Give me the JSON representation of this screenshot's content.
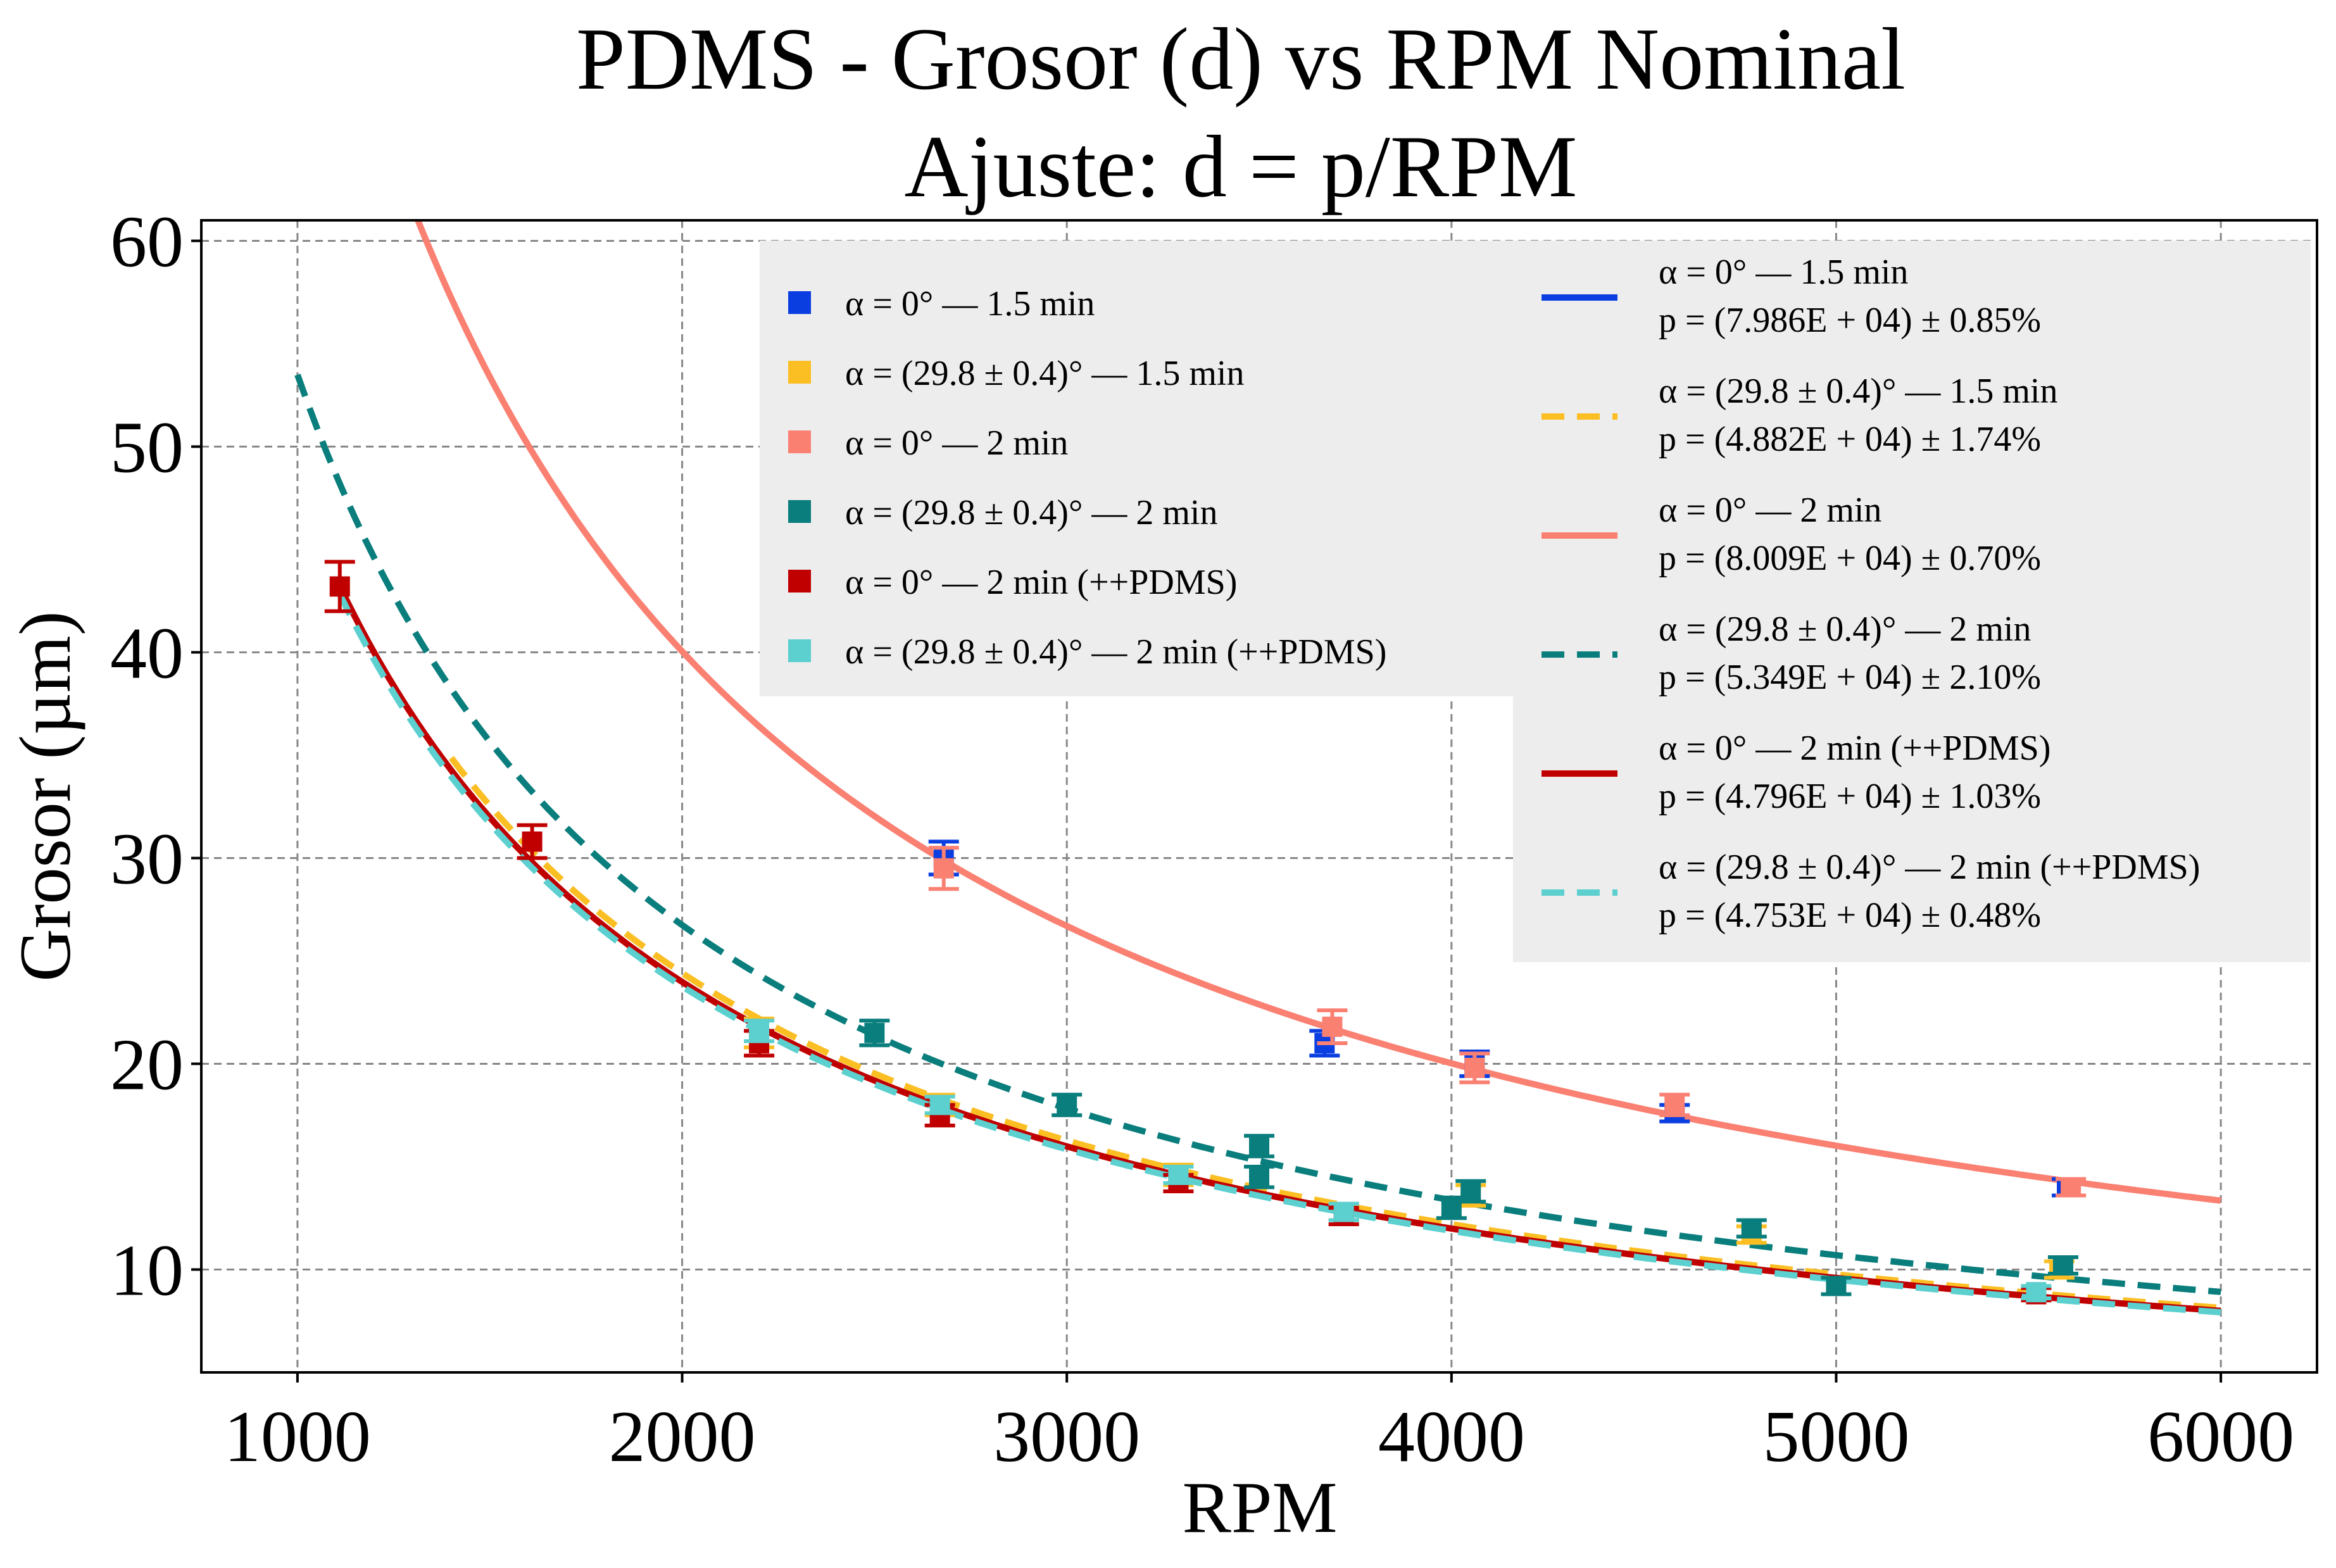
{
  "chart_data": {
    "type": "scatter",
    "title_line1": "PDMS - Grosor (d) vs RPM Nominal",
    "title_line2": "Ajuste: d = p/RPM",
    "xlabel": "RPM",
    "ylabel": "Grosor (µm)",
    "xlim": [
      750,
      6250
    ],
    "ylim": [
      5,
      61
    ],
    "xticks": [
      1000,
      2000,
      3000,
      4000,
      5000,
      6000
    ],
    "yticks": [
      10,
      20,
      30,
      40,
      50,
      60
    ],
    "grid": true,
    "legend_points_location": "upper center",
    "legend_fits_location": "upper right",
    "series": [
      {
        "name": "α = 0° — 1.5 min",
        "color": "#0a3ee0",
        "points": [
          [
            2680,
            30.0,
            0.8
          ],
          [
            3670,
            21.0,
            0.6
          ],
          [
            4060,
            20.0,
            0.6
          ],
          [
            4580,
            17.6,
            0.4
          ],
          [
            5600,
            14.0,
            0.4
          ]
        ],
        "fit_label": "α = 0° — 1.5 min",
        "fit_p_label": "p = (7.986E + 04) ± 0.85%",
        "fit_p": 79860,
        "fit_style": "solid",
        "fit_range": [
          1400,
          6000
        ]
      },
      {
        "name": "α = (29.8 ± 0.4)° — 1.5 min",
        "color": "#fbbf24",
        "points": [
          [
            2200,
            21.5,
            0.7
          ],
          [
            2670,
            18.0,
            0.5
          ],
          [
            3290,
            14.6,
            0.5
          ],
          [
            3720,
            12.8,
            0.4
          ],
          [
            4050,
            13.6,
            0.5
          ],
          [
            4780,
            11.7,
            0.4
          ],
          [
            5580,
            10.0,
            0.4
          ]
        ],
        "fit_label": "α = (29.8 ± 0.4)° — 1.5 min",
        "fit_p_label": "p = (4.882E + 04) ± 1.74%",
        "fit_p": 48820,
        "fit_style": "dashed",
        "fit_range": [
          1400,
          6000
        ]
      },
      {
        "name": "α = 0° — 2 min",
        "color": "#fa8072",
        "points": [
          [
            2680,
            29.5,
            1.0
          ],
          [
            3690,
            21.8,
            0.8
          ],
          [
            4060,
            19.8,
            0.7
          ],
          [
            4580,
            18.0,
            0.5
          ],
          [
            5610,
            14.0,
            0.4
          ]
        ],
        "fit_label": "α = 0° — 2 min",
        "fit_p_label": "p = (8.009E + 04) ± 0.70%",
        "fit_p": 80090,
        "fit_style": "solid",
        "fit_range": [
          1300,
          6000
        ]
      },
      {
        "name": "α = (29.8 ± 0.4)° — 2 min",
        "color": "#0a7d7d",
        "points": [
          [
            2500,
            21.5,
            0.6
          ],
          [
            3000,
            18.0,
            0.5
          ],
          [
            3500,
            16.0,
            0.5
          ],
          [
            3500,
            14.5,
            0.5
          ],
          [
            4000,
            13.0,
            0.5
          ],
          [
            4050,
            13.8,
            0.5
          ],
          [
            4780,
            12.0,
            0.4
          ],
          [
            5000,
            9.2,
            0.4
          ],
          [
            5590,
            10.2,
            0.4
          ]
        ],
        "fit_label": "α = (29.8 ± 0.4)° — 2 min",
        "fit_p_label": "p = (5.349E + 04) ± 2.10%",
        "fit_p": 53490,
        "fit_style": "dashed",
        "fit_range": [
          1000,
          6000
        ]
      },
      {
        "name": "α = 0° — 2 min (++PDMS)",
        "color": "#c00000",
        "points": [
          [
            1110,
            43.2,
            1.2
          ],
          [
            1610,
            30.8,
            0.8
          ],
          [
            2200,
            21.0,
            0.6
          ],
          [
            2670,
            17.5,
            0.5
          ],
          [
            3290,
            14.2,
            0.4
          ],
          [
            3720,
            12.6,
            0.4
          ],
          [
            5520,
            8.8,
            0.3
          ]
        ],
        "fit_label": "α = 0° — 2 min (++PDMS)",
        "fit_p_label": "p = (4.796E + 04) ± 1.03%",
        "fit_p": 47960,
        "fit_style": "solid",
        "fit_range": [
          1110,
          6000
        ]
      },
      {
        "name": "α = (29.8 ± 0.4)° — 2 min (++PDMS)",
        "color": "#5ccfcf",
        "points": [
          [
            2200,
            21.6,
            0.5
          ],
          [
            2670,
            18.0,
            0.4
          ],
          [
            3290,
            14.6,
            0.4
          ],
          [
            3720,
            12.8,
            0.4
          ],
          [
            5520,
            8.9,
            0.3
          ]
        ],
        "fit_label": "α = (29.8 ± 0.4)° — 2 min (++PDMS)",
        "fit_p_label": "p = (4.753E + 04) ± 0.48%",
        "fit_p": 47530,
        "fit_style": "dashed",
        "fit_range": [
          1110,
          6000
        ]
      }
    ]
  }
}
